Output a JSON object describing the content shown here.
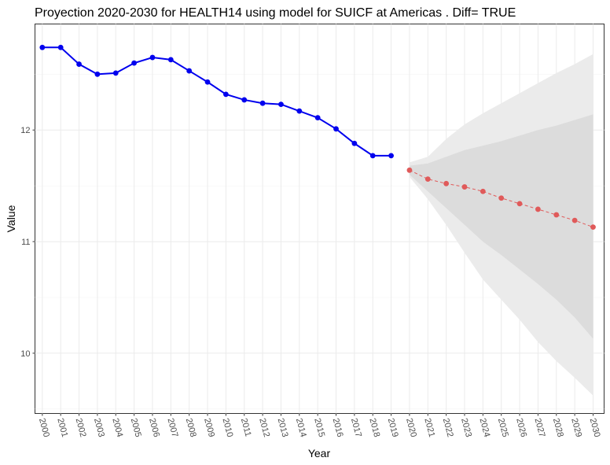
{
  "chart_data": {
    "type": "line",
    "title": "Proyection 2020-2030 for HEALTH14 using model for SUICF at Americas . Diff= TRUE",
    "xlabel": "Year",
    "ylabel": "Value",
    "xlim": [
      1999.6,
      2030.6
    ],
    "ylim": [
      9.46,
      12.95
    ],
    "x_ticks": [
      2000,
      2001,
      2002,
      2003,
      2004,
      2005,
      2006,
      2007,
      2008,
      2009,
      2010,
      2011,
      2012,
      2013,
      2014,
      2015,
      2016,
      2017,
      2018,
      2019,
      2020,
      2021,
      2022,
      2023,
      2024,
      2025,
      2026,
      2027,
      2028,
      2029,
      2030
    ],
    "x_tick_labels": [
      "2000",
      "2001",
      "2002",
      "2003",
      "2004",
      "2005",
      "2006",
      "2007",
      "2008",
      "2009",
      "2010",
      "2011",
      "2012",
      "2013",
      "2014",
      "2015",
      "2016",
      "2017",
      "2018",
      "2019",
      "2020",
      "2021",
      "2022",
      "2023",
      "2024",
      "2025",
      "2026",
      "2027",
      "2028",
      "2029",
      "2030"
    ],
    "y_ticks": [
      10,
      11,
      12
    ],
    "y_tick_labels": [
      "10",
      "11",
      "12"
    ],
    "grid": true,
    "legend": "none",
    "series": [
      {
        "kind": "observed",
        "color": "#0000ee",
        "x": [
          2000,
          2001,
          2002,
          2003,
          2004,
          2005,
          2006,
          2007,
          2008,
          2009,
          2010,
          2011,
          2012,
          2013,
          2014,
          2015,
          2016,
          2017,
          2018,
          2019
        ],
        "y": [
          12.74,
          12.74,
          12.59,
          12.5,
          12.51,
          12.6,
          12.65,
          12.63,
          12.53,
          12.43,
          12.32,
          12.27,
          12.24,
          12.23,
          12.17,
          12.11,
          12.01,
          11.88,
          11.77,
          11.77
        ]
      },
      {
        "kind": "forecast",
        "color": "#e05a5a",
        "x": [
          2020,
          2021,
          2022,
          2023,
          2024,
          2025,
          2026,
          2027,
          2028,
          2029,
          2030
        ],
        "y": [
          11.64,
          11.56,
          11.52,
          11.49,
          11.45,
          11.39,
          11.34,
          11.29,
          11.24,
          11.19,
          11.13
        ]
      }
    ],
    "bands": [
      {
        "level": "outer",
        "color": "#ebebeb",
        "x": [
          2020,
          2021,
          2022,
          2023,
          2024,
          2025,
          2026,
          2027,
          2028,
          2029,
          2030
        ],
        "lower": [
          11.58,
          11.38,
          11.15,
          10.9,
          10.66,
          10.48,
          10.3,
          10.1,
          9.93,
          9.78,
          9.62
        ],
        "upper": [
          11.71,
          11.76,
          11.92,
          12.05,
          12.15,
          12.24,
          12.33,
          12.42,
          12.51,
          12.59,
          12.68
        ]
      },
      {
        "level": "inner",
        "color": "#dcdcdc",
        "x": [
          2020,
          2021,
          2022,
          2023,
          2024,
          2025,
          2026,
          2027,
          2028,
          2029,
          2030
        ],
        "lower": [
          11.6,
          11.45,
          11.3,
          11.15,
          11.0,
          10.88,
          10.75,
          10.62,
          10.48,
          10.32,
          10.13
        ],
        "upper": [
          11.68,
          11.7,
          11.76,
          11.82,
          11.86,
          11.9,
          11.95,
          12.0,
          12.04,
          12.09,
          12.14
        ]
      }
    ]
  }
}
